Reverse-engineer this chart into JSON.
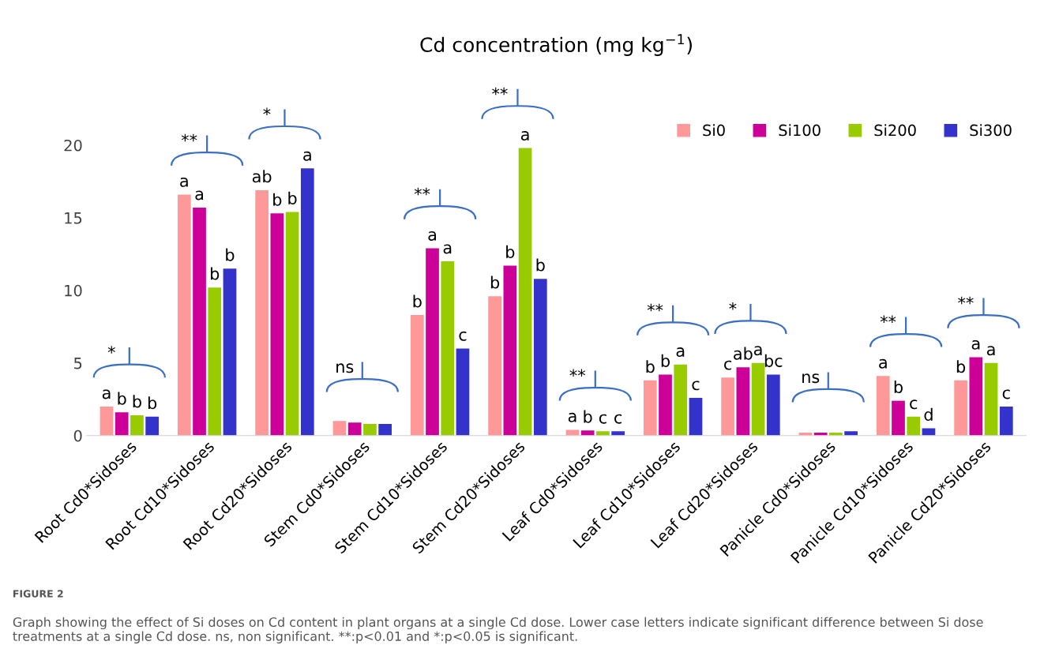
{
  "chart_data": {
    "type": "bar",
    "title": "Cd concentration (mg kg$^{−1}$)",
    "categories": [
      "Root Cd0*Sidoses",
      "Root Cd10*Sidoses",
      "Root Cd20*Sidoses",
      "Stem Cd0*Sidoses",
      "Stem Cd10*Sidoses",
      "Stem Cd20*Sidoses",
      "Leaf Cd0*Sidoses",
      "Leaf Cd10*Sidoses",
      "Leaf Cd20*Sidoses",
      "Panicle Cd0*Sidoses",
      "Panicle Cd10*Sidoses",
      "Panicle Cd20*Sidoses"
    ],
    "series": [
      {
        "name": "Si0",
        "color": "#ff9999",
        "values": [
          2.0,
          16.6,
          16.9,
          1.0,
          8.3,
          9.6,
          0.4,
          3.8,
          4.0,
          0.2,
          4.1,
          3.8
        ],
        "value_labels": [
          "a",
          "a",
          "ab",
          null,
          "b",
          "b",
          "a",
          "b",
          "c",
          null,
          "a",
          "b"
        ]
      },
      {
        "name": "Si100",
        "color": "#cc0099",
        "values": [
          1.6,
          15.7,
          15.3,
          0.9,
          12.9,
          11.7,
          0.35,
          4.2,
          4.7,
          0.2,
          2.4,
          5.4
        ],
        "value_labels": [
          "b",
          "a",
          "b",
          null,
          "a",
          "b",
          "b",
          "b",
          "ab",
          null,
          "b",
          "a"
        ]
      },
      {
        "name": "Si200",
        "color": "#99cc00",
        "values": [
          1.4,
          10.2,
          15.4,
          0.8,
          12.0,
          19.8,
          0.3,
          4.9,
          5.0,
          0.2,
          1.3,
          5.0
        ],
        "value_labels": [
          "b",
          "b",
          "b",
          null,
          "a",
          "a",
          "c",
          "a",
          "a",
          null,
          "c",
          "a"
        ]
      },
      {
        "name": "Si300",
        "color": "#3333cc",
        "values": [
          1.3,
          11.5,
          18.4,
          0.8,
          6.0,
          10.8,
          0.3,
          2.6,
          4.2,
          0.3,
          0.5,
          2.0
        ],
        "value_labels": [
          "b",
          "b",
          "a",
          null,
          "c",
          "b",
          "c",
          "c",
          "bc",
          null,
          "d",
          "c"
        ]
      }
    ],
    "ylim": [
      0,
      20
    ],
    "yticks": [
      0,
      5,
      10,
      15,
      20
    ],
    "grid": false,
    "legend": "top right",
    "annotations": [
      "*",
      "**",
      "*",
      "ns",
      "**",
      "**",
      "**",
      "**",
      "*",
      "ns",
      "**",
      "**",
      "FIGURE 2",
      "Graph showing the effect of Si doses on Cd content in plant organs at a single Cd dose. Lower case letters indicate significant difference between Si dose treatments at a single Cd dose. ns, non significant. **:p<0.01 and *:p<0.05 is significant."
    ]
  }
}
